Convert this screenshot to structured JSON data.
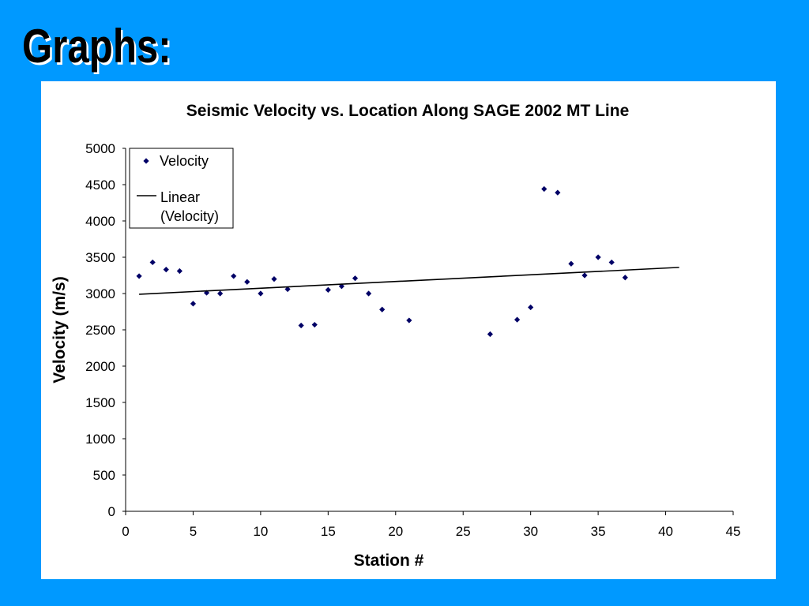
{
  "slide": {
    "title": "Graphs:"
  },
  "chart_data": {
    "type": "scatter",
    "title": "Seismic Velocity vs. Location Along SAGE 2002 MT Line",
    "xlabel": "Station #",
    "ylabel": "Velocity (m/s)",
    "xlim": [
      0,
      45
    ],
    "ylim": [
      0,
      5000
    ],
    "xticks": [
      0,
      5,
      10,
      15,
      20,
      25,
      30,
      35,
      40,
      45
    ],
    "yticks": [
      0,
      500,
      1000,
      1500,
      2000,
      2500,
      3000,
      3500,
      4000,
      4500,
      5000
    ],
    "grid": false,
    "legend_position": "top-left",
    "series": [
      {
        "name": "Velocity",
        "marker": "diamond",
        "color": "#000066",
        "points": [
          [
            1,
            3240
          ],
          [
            2,
            3430
          ],
          [
            3,
            3330
          ],
          [
            4,
            3310
          ],
          [
            5,
            2860
          ],
          [
            6,
            3010
          ],
          [
            7,
            3000
          ],
          [
            8,
            3240
          ],
          [
            9,
            3160
          ],
          [
            10,
            3000
          ],
          [
            11,
            3200
          ],
          [
            12,
            3060
          ],
          [
            13,
            2560
          ],
          [
            14,
            2570
          ],
          [
            15,
            3050
          ],
          [
            16,
            3100
          ],
          [
            17,
            3210
          ],
          [
            18,
            3000
          ],
          [
            19,
            2780
          ],
          [
            21,
            2630
          ],
          [
            27,
            2440
          ],
          [
            29,
            2640
          ],
          [
            30,
            2810
          ],
          [
            31,
            4440
          ],
          [
            32,
            4390
          ],
          [
            33,
            3410
          ],
          [
            34,
            3250
          ],
          [
            35,
            3500
          ],
          [
            36,
            3430
          ],
          [
            37,
            3220
          ]
        ]
      },
      {
        "name": "Linear\n(Velocity)",
        "legend_lines": [
          "Linear",
          "(Velocity)"
        ],
        "type": "line",
        "color": "#000000",
        "points": [
          [
            1,
            2990
          ],
          [
            41,
            3360
          ]
        ]
      }
    ]
  }
}
